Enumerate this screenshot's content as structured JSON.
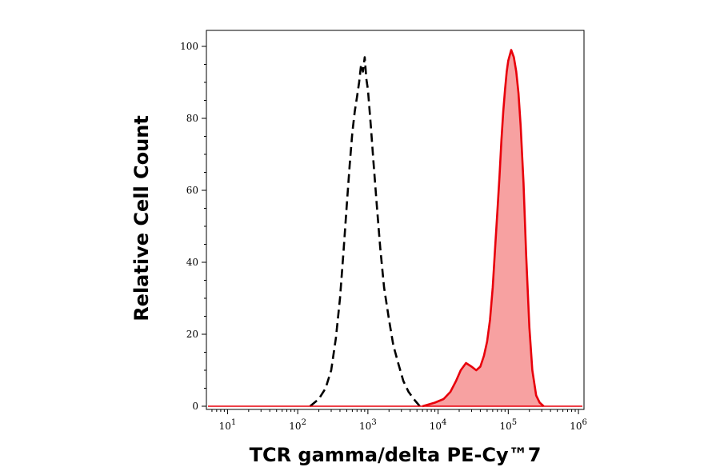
{
  "chart_data": {
    "type": "area",
    "xlabel": "TCR gamma/delta PE-Cy™7",
    "ylabel": "Relative Cell Count",
    "x_scale": "log",
    "xlim": [
      5,
      1200000
    ],
    "ylim": [
      0,
      102
    ],
    "x_ticks": [
      {
        "value": 10,
        "base": "10",
        "exp": "1"
      },
      {
        "value": 100,
        "base": "10",
        "exp": "2"
      },
      {
        "value": 1000,
        "base": "10",
        "exp": "3"
      },
      {
        "value": 10000,
        "base": "10",
        "exp": "4"
      },
      {
        "value": 100000,
        "base": "10",
        "exp": "5"
      },
      {
        "value": 1000000,
        "base": "10",
        "exp": "6"
      }
    ],
    "y_ticks": [
      {
        "value": 0,
        "label": "0"
      },
      {
        "value": 20,
        "label": "20"
      },
      {
        "value": 40,
        "label": "40"
      },
      {
        "value": 60,
        "label": "60"
      },
      {
        "value": 80,
        "label": "80"
      },
      {
        "value": 100,
        "label": "100"
      }
    ],
    "grid": false,
    "legend": "none",
    "series": [
      {
        "style": "dashed-black-line",
        "color": "#000000",
        "fill": "none",
        "x": [
          150,
          200,
          250,
          300,
          350,
          400,
          450,
          500,
          550,
          600,
          650,
          700,
          750,
          800,
          850,
          900,
          950,
          1000,
          1100,
          1200,
          1350,
          1500,
          1700,
          2000,
          2300,
          2700,
          3200,
          3800,
          4500,
          5500
        ],
        "y": [
          0,
          2,
          5,
          10,
          19,
          30,
          43,
          56,
          67,
          76,
          82,
          86,
          90,
          95,
          93,
          97,
          91,
          88,
          78,
          68,
          55,
          44,
          33,
          24,
          17,
          12,
          7,
          4,
          2,
          0
        ]
      },
      {
        "style": "solid-red-line-filled",
        "color": "#e8000b",
        "fill": "#f7a1a1",
        "x": [
          6000,
          9000,
          12000,
          15000,
          18000,
          21000,
          25000,
          30000,
          35000,
          40000,
          45000,
          50000,
          55000,
          60000,
          65000,
          70000,
          75000,
          80000,
          85000,
          90000,
          95000,
          100000,
          110000,
          120000,
          130000,
          140000,
          150000,
          165000,
          180000,
          200000,
          220000,
          250000,
          280000,
          320000
        ],
        "y": [
          0,
          1,
          2,
          4,
          7,
          10,
          12,
          11,
          10,
          11,
          14,
          18,
          24,
          33,
          44,
          54,
          64,
          74,
          82,
          88,
          93,
          96,
          99,
          97,
          93,
          87,
          78,
          62,
          42,
          22,
          10,
          3,
          1,
          0
        ]
      }
    ]
  }
}
